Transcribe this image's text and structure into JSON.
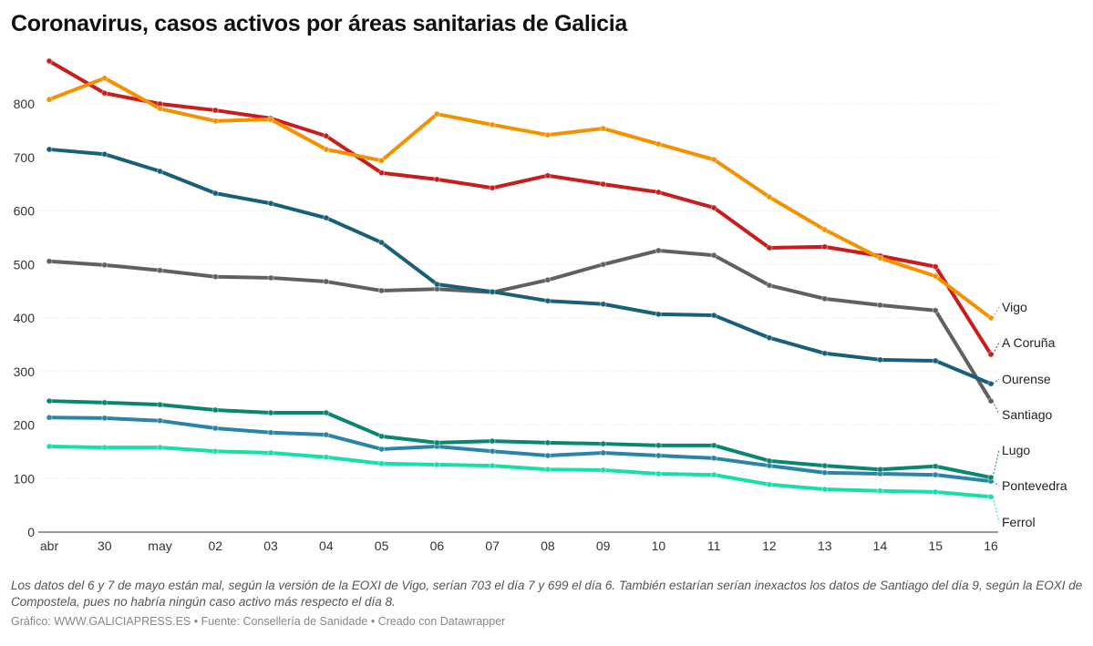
{
  "chart_data": {
    "type": "line",
    "title": "Coronavirus, casos activos por áreas sanitarias de Galicia",
    "xlabel": "",
    "ylabel": "",
    "categories": [
      "abr",
      "30",
      "may",
      "02",
      "03",
      "04",
      "05",
      "06",
      "07",
      "08",
      "09",
      "10",
      "11",
      "12",
      "13",
      "14",
      "15",
      "16"
    ],
    "ylim": [
      0,
      900
    ],
    "yticks": [
      0,
      100,
      200,
      300,
      400,
      500,
      600,
      700,
      800
    ],
    "grid": true,
    "legend": "direct labels at line ends (right)",
    "series": [
      {
        "name": "Vigo",
        "color": "#f59100",
        "values": [
          808,
          848,
          791,
          768,
          771,
          715,
          694,
          781,
          761,
          742,
          754,
          725,
          696,
          626,
          565,
          512,
          478,
          400
        ]
      },
      {
        "name": "A Coruña",
        "color": "#c71e1d",
        "values": [
          880,
          820,
          800,
          788,
          773,
          740,
          671,
          659,
          643,
          666,
          650,
          635,
          606,
          531,
          533,
          516,
          496,
          332
        ]
      },
      {
        "name": "Ourense",
        "color": "#18607a",
        "values": [
          715,
          706,
          674,
          633,
          614,
          587,
          541,
          463,
          449,
          432,
          426,
          407,
          405,
          363,
          334,
          322,
          320,
          277
        ]
      },
      {
        "name": "Santiago",
        "color": "#606060",
        "values": [
          506,
          499,
          489,
          477,
          475,
          468,
          451,
          454,
          448,
          471,
          500,
          526,
          517,
          461,
          436,
          424,
          414,
          245
        ]
      },
      {
        "name": "Lugo",
        "color": "#09866f",
        "values": [
          245,
          242,
          238,
          228,
          223,
          223,
          179,
          167,
          170,
          167,
          165,
          162,
          162,
          133,
          124,
          117,
          123,
          102
        ]
      },
      {
        "name": "Pontevedra",
        "color": "#2b84a8",
        "values": [
          214,
          213,
          208,
          194,
          186,
          182,
          155,
          160,
          151,
          143,
          148,
          143,
          138,
          124,
          111,
          109,
          107,
          95
        ]
      },
      {
        "name": "Ferrol",
        "color": "#15e0a7",
        "values": [
          160,
          158,
          158,
          151,
          148,
          140,
          128,
          126,
          124,
          117,
          116,
          109,
          107,
          89,
          80,
          77,
          75,
          66
        ]
      }
    ]
  },
  "note": "Los datos del 6 y 7 de mayo están mal, según la versión de la EOXI de Vigo, serían 703 el día 7 y 699 el día 6. También estarían serían inexactos los datos de Santiago del día 9, según la EOXI de Compostela, pues no habría ningún caso activo más respecto el día 8.",
  "footer": "Gráfico: WWW.GALICIAPRESS.ES • Fuente: Consellería de Sanidade • Creado con Datawrapper"
}
